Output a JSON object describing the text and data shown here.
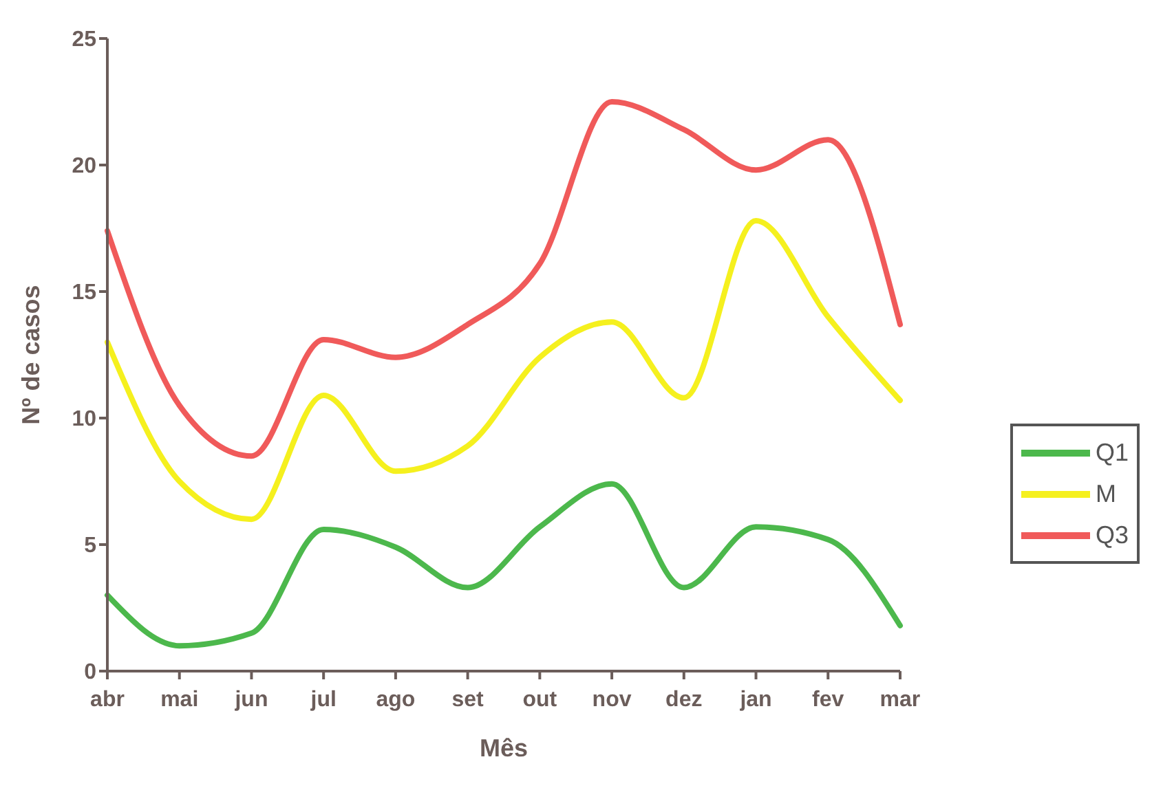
{
  "chart_data": {
    "type": "line",
    "xlabel": "Mês",
    "ylabel": "Nº de casos",
    "categories": [
      "abr",
      "mai",
      "jun",
      "jul",
      "ago",
      "set",
      "out",
      "nov",
      "dez",
      "jan",
      "fev",
      "mar"
    ],
    "series": [
      {
        "name": "Q1",
        "color": "#4cb84c",
        "values": [
          3.0,
          1.0,
          1.5,
          5.6,
          4.9,
          3.3,
          5.7,
          7.4,
          3.3,
          5.7,
          5.2,
          1.8
        ]
      },
      {
        "name": "M",
        "color": "#f5f01e",
        "values": [
          13.0,
          7.5,
          6.0,
          10.9,
          7.9,
          8.9,
          12.4,
          13.8,
          10.8,
          17.8,
          14.0,
          10.7
        ]
      },
      {
        "name": "Q3",
        "color": "#f05a5a",
        "values": [
          17.4,
          10.5,
          8.5,
          13.1,
          12.4,
          13.7,
          16.1,
          22.5,
          21.4,
          19.8,
          21.0,
          13.7
        ]
      }
    ],
    "ylim": [
      0,
      25
    ],
    "yticks": [
      0,
      5,
      10,
      15,
      20,
      25
    ],
    "grid": false,
    "legend": "right",
    "marker": "none",
    "line_style": "solid"
  }
}
